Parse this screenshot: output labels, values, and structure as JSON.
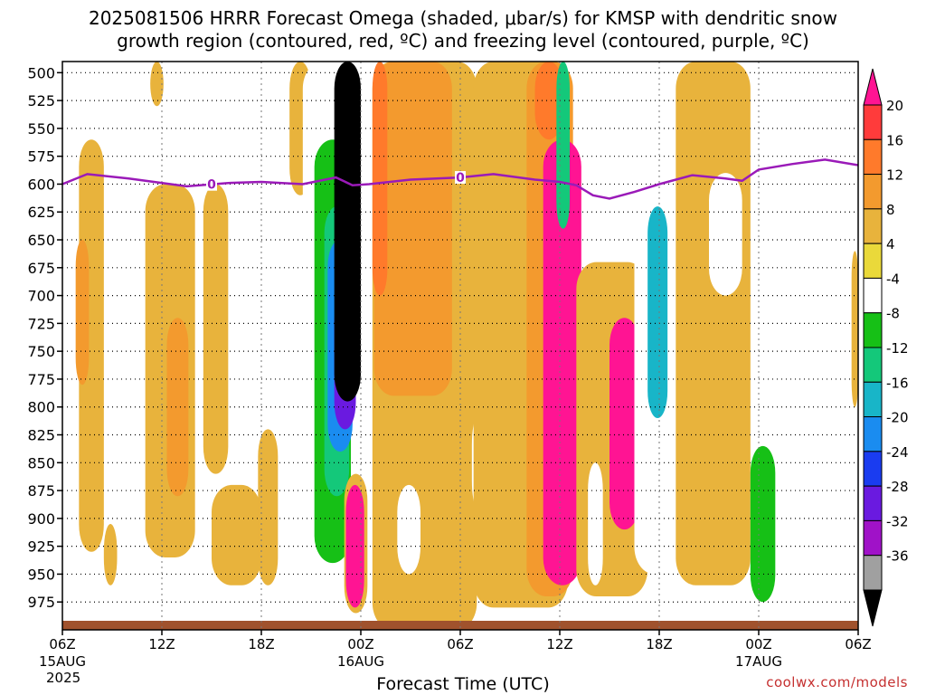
{
  "title": {
    "line1": "2025081506 HRRR Forecast Omega (shaded, μbar/s) for KMSP with dendritic snow",
    "line2": "growth region (contoured, red, ºC) and freezing level (contoured, purple, ºC)"
  },
  "xlabel": "Forecast Time (UTC)",
  "credit": "coolwx.com/models",
  "chart_data": {
    "type": "heatmap",
    "title": "2025081506 HRRR Forecast Omega (shaded, μbar/s) for KMSP with dendritic snow growth region (contoured, red, ºC) and freezing level (contoured, purple, ºC)",
    "xlabel": "Forecast Time (UTC)",
    "ylabel": "",
    "y_ticks": [
      500,
      525,
      550,
      575,
      600,
      625,
      650,
      675,
      700,
      725,
      750,
      775,
      800,
      825,
      850,
      875,
      900,
      925,
      950,
      975
    ],
    "y_range": [
      490,
      1000
    ],
    "x_ticks": [
      {
        "hour": 0,
        "label": "06Z",
        "sub1": "15AUG",
        "sub2": "2025"
      },
      {
        "hour": 6,
        "label": "12Z",
        "sub1": "",
        "sub2": ""
      },
      {
        "hour": 12,
        "label": "18Z",
        "sub1": "",
        "sub2": ""
      },
      {
        "hour": 18,
        "label": "00Z",
        "sub1": "16AUG",
        "sub2": ""
      },
      {
        "hour": 24,
        "label": "06Z",
        "sub1": "",
        "sub2": ""
      },
      {
        "hour": 30,
        "label": "12Z",
        "sub1": "",
        "sub2": ""
      },
      {
        "hour": 36,
        "label": "18Z",
        "sub1": "",
        "sub2": ""
      },
      {
        "hour": 42,
        "label": "00Z",
        "sub1": "17AUG",
        "sub2": ""
      },
      {
        "hour": 48,
        "label": "06Z",
        "sub1": "",
        "sub2": ""
      }
    ],
    "x_range": [
      0,
      48
    ],
    "colorbar": {
      "labels": [
        "20",
        "16",
        "12",
        "8",
        "4",
        "-4",
        "-8",
        "-12",
        "-16",
        "-20",
        "-24",
        "-28",
        "-32",
        "-36"
      ],
      "bins": [
        {
          "color": "#ff1493"
        },
        {
          "color": "#ff3b3b"
        },
        {
          "color": "#ff7a2b"
        },
        {
          "color": "#f39a2e"
        },
        {
          "color": "#e8b33c"
        },
        {
          "color": "#ead93a"
        },
        {
          "color": "#ffffff"
        },
        {
          "color": "#16c016"
        },
        {
          "color": "#14c87a"
        },
        {
          "color": "#18b5c8"
        },
        {
          "color": "#1a8cf0"
        },
        {
          "color": "#1a3cf0"
        },
        {
          "color": "#6a1ae0"
        },
        {
          "color": "#a012c8"
        },
        {
          "color": "#a0a0a0"
        },
        {
          "color": "#000000"
        }
      ]
    },
    "freezing_level": {
      "color": "#9a1ab8",
      "label": "0",
      "points": [
        [
          0,
          600
        ],
        [
          1.5,
          591
        ],
        [
          4,
          595
        ],
        [
          7.5,
          602
        ],
        [
          10,
          599
        ],
        [
          12,
          598
        ],
        [
          14.5,
          600
        ],
        [
          16.5,
          594
        ],
        [
          17.5,
          601
        ],
        [
          18.5,
          600
        ],
        [
          21,
          596
        ],
        [
          24,
          594
        ],
        [
          26,
          591
        ],
        [
          28.5,
          596
        ],
        [
          30,
          598
        ],
        [
          31,
          601
        ],
        [
          32,
          610
        ],
        [
          33,
          613
        ],
        [
          34.5,
          607
        ],
        [
          36,
          600
        ],
        [
          38,
          592
        ],
        [
          40,
          595
        ],
        [
          41,
          597
        ],
        [
          42,
          587
        ],
        [
          44,
          582
        ],
        [
          46,
          578
        ],
        [
          48,
          583
        ]
      ],
      "label_positions": [
        9,
        24
      ]
    },
    "shaded_regions": [
      {
        "omega": 6,
        "x": [
          1,
          2.5
        ],
        "p": [
          560,
          930
        ]
      },
      {
        "omega": 10,
        "x": [
          0.8,
          1.6
        ],
        "p": [
          650,
          780
        ]
      },
      {
        "omega": 6,
        "x": [
          2.5,
          3.3
        ],
        "p": [
          905,
          960
        ]
      },
      {
        "omega": 6,
        "x": [
          5,
          8
        ],
        "p": [
          600,
          935
        ]
      },
      {
        "omega": 10,
        "x": [
          6.3,
          7.6
        ],
        "p": [
          720,
          880
        ]
      },
      {
        "omega": 5,
        "x": [
          5.3,
          6.1
        ],
        "p": [
          490,
          530
        ]
      },
      {
        "omega": 6,
        "x": [
          8.5,
          10
        ],
        "p": [
          600,
          860
        ]
      },
      {
        "omega": 6,
        "x": [
          9,
          12
        ],
        "p": [
          870,
          960
        ]
      },
      {
        "omega": 6,
        "x": [
          11.8,
          13
        ],
        "p": [
          820,
          960
        ]
      },
      {
        "omega": 6,
        "x": [
          13.7,
          15
        ],
        "p": [
          490,
          610
        ]
      },
      {
        "omega": -6,
        "x": [
          14.5,
          17.6
        ],
        "p": [
          490,
          960
        ]
      },
      {
        "omega": -10,
        "x": [
          15.2,
          17.4
        ],
        "p": [
          560,
          940
        ]
      },
      {
        "omega": -14,
        "x": [
          15.8,
          17.3
        ],
        "p": [
          620,
          880
        ]
      },
      {
        "omega": -22,
        "x": [
          16,
          17.5
        ],
        "p": [
          650,
          840
        ]
      },
      {
        "omega": -30,
        "x": [
          16.4,
          17.7
        ],
        "p": [
          700,
          820
        ]
      },
      {
        "omega": -40,
        "x": [
          16.4,
          18
        ],
        "p": [
          490,
          795
        ]
      },
      {
        "omega": 6,
        "x": [
          17,
          18.4
        ],
        "p": [
          860,
          985
        ]
      },
      {
        "omega": 20,
        "x": [
          17.1,
          18.2
        ],
        "p": [
          870,
          980
        ]
      },
      {
        "omega": 6,
        "x": [
          18.7,
          25
        ],
        "p": [
          490,
          1000
        ]
      },
      {
        "omega": 10,
        "x": [
          18.8,
          23.5
        ],
        "p": [
          490,
          790
        ]
      },
      {
        "omega": 14,
        "x": [
          18.7,
          19.6
        ],
        "p": [
          490,
          700
        ]
      },
      {
        "omega": -6,
        "x": [
          20.2,
          21.6
        ],
        "p": [
          870,
          950
        ]
      },
      {
        "omega": -6,
        "x": [
          24.7,
          25.3
        ],
        "p": [
          810,
          890
        ]
      },
      {
        "omega": 6,
        "x": [
          24.8,
          30.5
        ],
        "p": [
          490,
          980
        ]
      },
      {
        "omega": 10,
        "x": [
          28,
          30.8
        ],
        "p": [
          490,
          970
        ]
      },
      {
        "omega": 20,
        "x": [
          29,
          31.3
        ],
        "p": [
          560,
          960
        ]
      },
      {
        "omega": 14,
        "x": [
          28.5,
          30.2
        ],
        "p": [
          490,
          560
        ]
      },
      {
        "omega": -14,
        "x": [
          29.8,
          30.6
        ],
        "p": [
          490,
          640
        ]
      },
      {
        "omega": 6,
        "x": [
          31,
          35.3
        ],
        "p": [
          670,
          970
        ]
      },
      {
        "omega": 20,
        "x": [
          33,
          34.8
        ],
        "p": [
          720,
          910
        ]
      },
      {
        "omega": -6,
        "x": [
          31.7,
          32.6
        ],
        "p": [
          850,
          960
        ]
      },
      {
        "omega": -6,
        "x": [
          34.5,
          37
        ],
        "p": [
          490,
          950
        ]
      },
      {
        "omega": -20,
        "x": [
          35.3,
          36.5
        ],
        "p": [
          620,
          810
        ]
      },
      {
        "omega": 6,
        "x": [
          37,
          41.5
        ],
        "p": [
          490,
          960
        ]
      },
      {
        "omega": -6,
        "x": [
          39,
          41
        ],
        "p": [
          590,
          700
        ]
      },
      {
        "omega": -10,
        "x": [
          41.5,
          43
        ],
        "p": [
          835,
          975
        ]
      },
      {
        "omega": -6,
        "x": [
          45,
          48
        ],
        "p": [
          900,
          960
        ]
      },
      {
        "omega": 6,
        "x": [
          47.6,
          48
        ],
        "p": [
          660,
          800
        ]
      }
    ]
  }
}
